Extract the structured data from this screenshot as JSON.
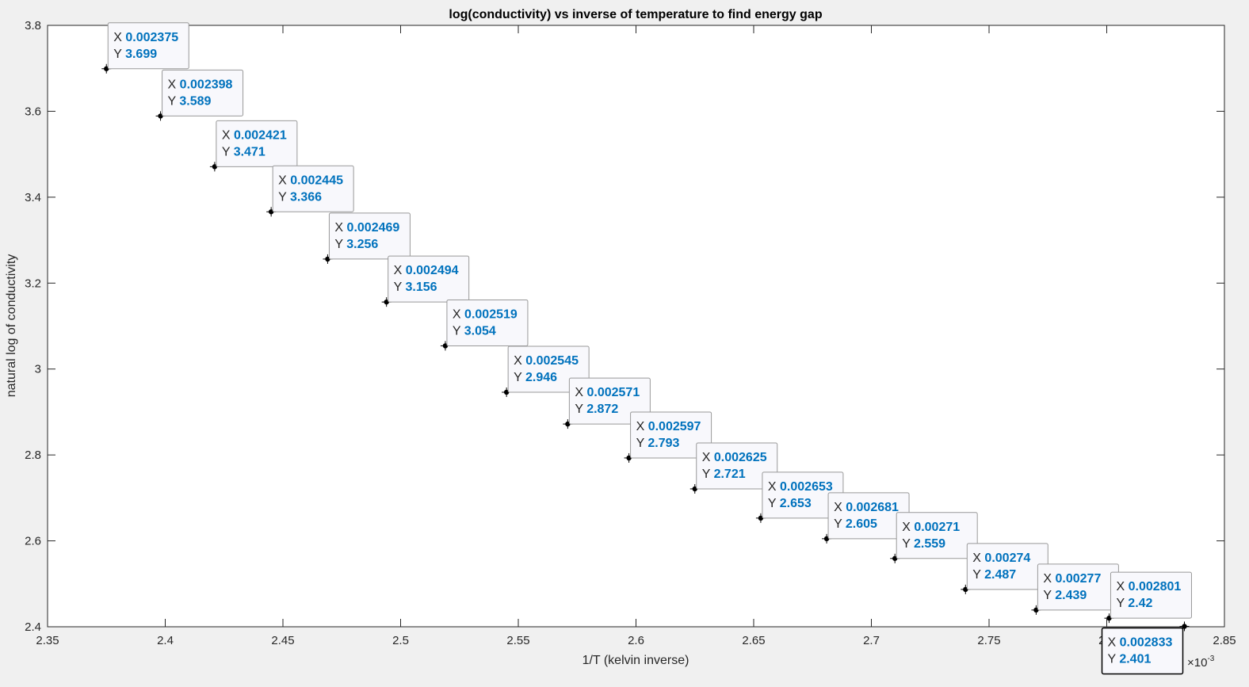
{
  "chart_data": {
    "type": "scatter",
    "title": "log(conductivity) vs inverse of temperature to find energy gap",
    "xlabel": "1/T (kelvin inverse)",
    "ylabel": "natural log of conductivity",
    "x_exponent_label": "×10",
    "x_exponent_power": "-3",
    "xlim": [
      0.00235,
      0.00285
    ],
    "ylim": [
      2.4,
      3.8
    ],
    "xticks": [
      2.35,
      2.4,
      2.45,
      2.5,
      2.55,
      2.6,
      2.65,
      2.7,
      2.75,
      2.8,
      2.85
    ],
    "xtick_labels": [
      "2.35",
      "2.4",
      "2.45",
      "2.5",
      "2.55",
      "2.6",
      "2.65",
      "2.7",
      "2.75",
      "2.8",
      "2.85"
    ],
    "yticks": [
      2.4,
      2.6,
      2.8,
      3.0,
      3.2,
      3.4,
      3.6,
      3.8
    ],
    "ytick_labels": [
      "2.4",
      "2.6",
      "2.8",
      "3",
      "3.2",
      "3.4",
      "3.6",
      "3.8"
    ],
    "grid": false,
    "marker_color": "#000000",
    "datatip_value_color": "#0072bd",
    "datatip_x_key": "X",
    "datatip_y_key": "Y",
    "points": [
      {
        "x": 0.002375,
        "y": 3.699,
        "xl": "0.002375",
        "yl": "3.699"
      },
      {
        "x": 0.002398,
        "y": 3.589,
        "xl": "0.002398",
        "yl": "3.589"
      },
      {
        "x": 0.002421,
        "y": 3.471,
        "xl": "0.002421",
        "yl": "3.471"
      },
      {
        "x": 0.002445,
        "y": 3.366,
        "xl": "0.002445",
        "yl": "3.366"
      },
      {
        "x": 0.002469,
        "y": 3.256,
        "xl": "0.002469",
        "yl": "3.256"
      },
      {
        "x": 0.002494,
        "y": 3.156,
        "xl": "0.002494",
        "yl": "3.156"
      },
      {
        "x": 0.002519,
        "y": 3.054,
        "xl": "0.002519",
        "yl": "3.054"
      },
      {
        "x": 0.002545,
        "y": 2.946,
        "xl": "0.002545",
        "yl": "2.946"
      },
      {
        "x": 0.002571,
        "y": 2.872,
        "xl": "0.002571",
        "yl": "2.872"
      },
      {
        "x": 0.002597,
        "y": 2.793,
        "xl": "0.002597",
        "yl": "2.793"
      },
      {
        "x": 0.002625,
        "y": 2.721,
        "xl": "0.002625",
        "yl": "2.721"
      },
      {
        "x": 0.002653,
        "y": 2.653,
        "xl": "0.002653",
        "yl": "2.653"
      },
      {
        "x": 0.002681,
        "y": 2.605,
        "xl": "0.002681",
        "yl": "2.605"
      },
      {
        "x": 0.00271,
        "y": 2.559,
        "xl": "0.00271",
        "yl": "2.559"
      },
      {
        "x": 0.00274,
        "y": 2.487,
        "xl": "0.00274",
        "yl": "2.487"
      },
      {
        "x": 0.00277,
        "y": 2.439,
        "xl": "0.00277",
        "yl": "2.439"
      },
      {
        "x": 0.002801,
        "y": 2.42,
        "xl": "0.002801",
        "yl": "2.42"
      },
      {
        "x": 0.002833,
        "y": 2.401,
        "xl": "0.002833",
        "yl": "2.401",
        "selected": true
      }
    ]
  }
}
